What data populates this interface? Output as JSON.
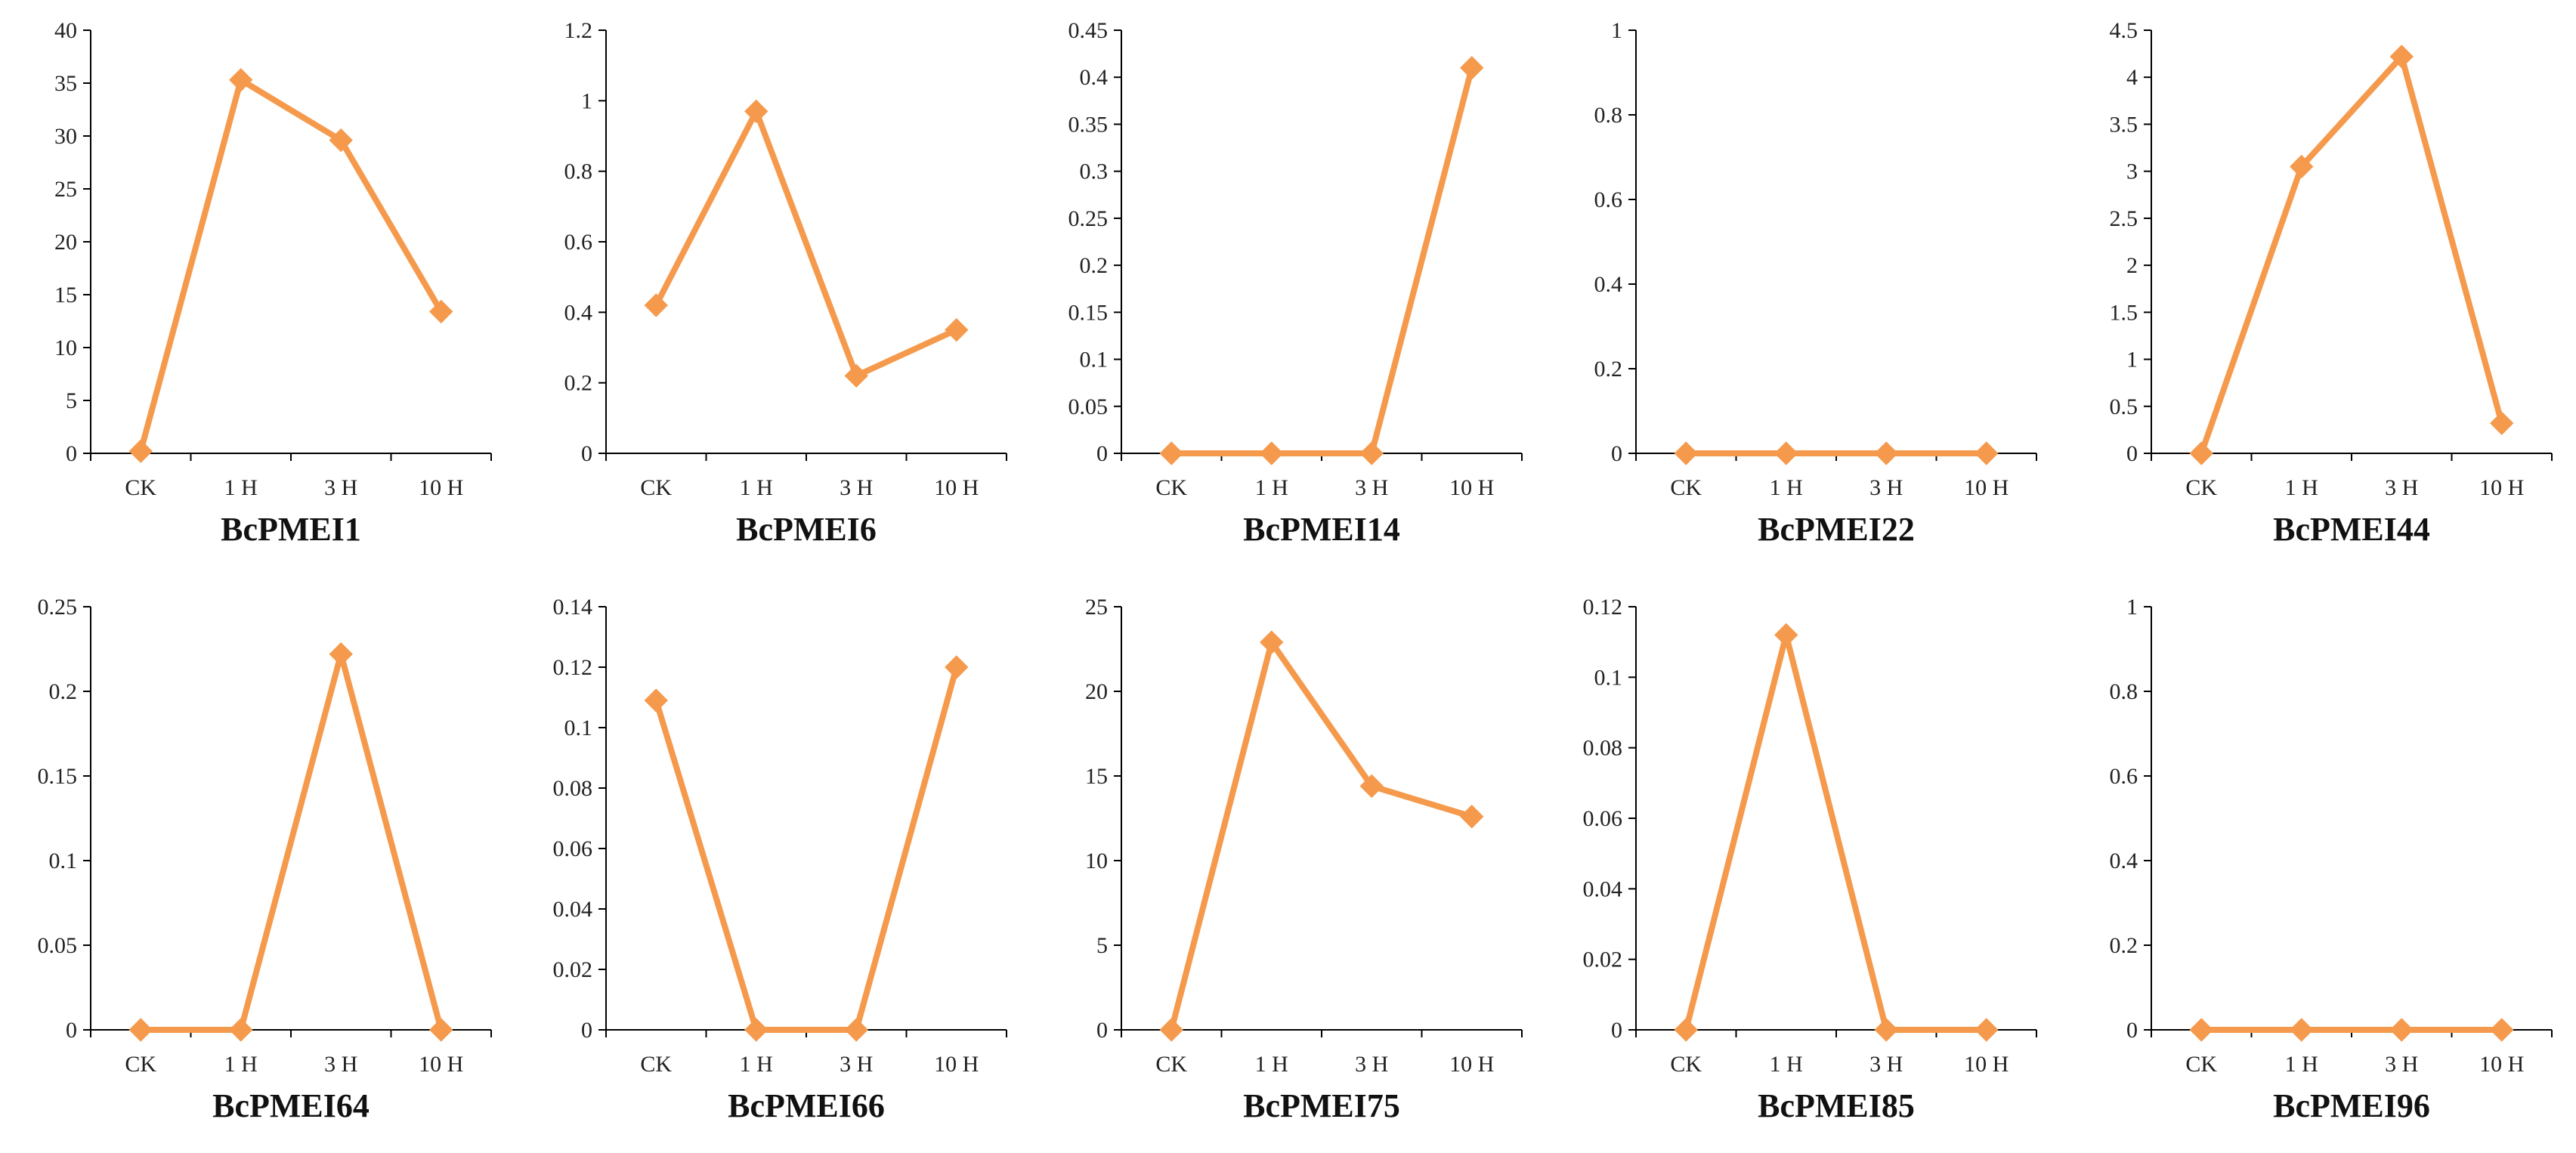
{
  "series_color": "#F59A4D",
  "axis_color": "#000000",
  "chart_data": [
    {
      "type": "line",
      "title": "BcPMEI1",
      "categories": [
        "CK",
        "1 H",
        "3 H",
        "10 H"
      ],
      "values": [
        0.2,
        35.3,
        29.6,
        13.4
      ],
      "ylim": [
        0,
        40
      ],
      "ytick_labels": [
        "0",
        "5",
        "10",
        "15",
        "20",
        "25",
        "30",
        "35",
        "40"
      ],
      "grid": false,
      "legend": "none"
    },
    {
      "type": "line",
      "title": "BcPMEI6",
      "categories": [
        "CK",
        "1 H",
        "3 H",
        "10 H"
      ],
      "values": [
        0.42,
        0.97,
        0.22,
        0.35
      ],
      "ylim": [
        0,
        1.2
      ],
      "ytick_labels": [
        "0",
        "0.2",
        "0.4",
        "0.6",
        "0.8",
        "1",
        "1.2"
      ],
      "grid": false,
      "legend": "none"
    },
    {
      "type": "line",
      "title": "BcPMEI14",
      "categories": [
        "CK",
        "1 H",
        "3 H",
        "10 H"
      ],
      "values": [
        0,
        0,
        0,
        0.41
      ],
      "ylim": [
        0,
        0.45
      ],
      "ytick_labels": [
        "0",
        "0.05",
        "0.1",
        "0.15",
        "0.2",
        "0.25",
        "0.3",
        "0.35",
        "0.4",
        "0.45"
      ],
      "grid": false,
      "legend": "none"
    },
    {
      "type": "line",
      "title": "BcPMEI22",
      "categories": [
        "CK",
        "1 H",
        "3 H",
        "10 H"
      ],
      "values": [
        0,
        0,
        0,
        0
      ],
      "ylim": [
        0,
        1
      ],
      "ytick_labels": [
        "0",
        "0.2",
        "0.4",
        "0.6",
        "0.8",
        "1"
      ],
      "grid": false,
      "legend": "none"
    },
    {
      "type": "line",
      "title": "BcPMEI44",
      "categories": [
        "CK",
        "1 H",
        "3 H",
        "10 H"
      ],
      "values": [
        0,
        3.05,
        4.22,
        0.32
      ],
      "ylim": [
        0,
        4.5
      ],
      "ytick_labels": [
        "0",
        "0.5",
        "1",
        "1.5",
        "2",
        "2.5",
        "3",
        "3.5",
        "4",
        "4.5"
      ],
      "grid": false,
      "legend": "none"
    },
    {
      "type": "line",
      "title": "BcPMEI64",
      "categories": [
        "CK",
        "1 H",
        "3 H",
        "10 H"
      ],
      "values": [
        0,
        0,
        0.222,
        0
      ],
      "ylim": [
        0,
        0.25
      ],
      "ytick_labels": [
        "0",
        "0.05",
        "0.1",
        "0.15",
        "0.2",
        "0.25"
      ],
      "grid": false,
      "legend": "none"
    },
    {
      "type": "line",
      "title": "BcPMEI66",
      "categories": [
        "CK",
        "1 H",
        "3 H",
        "10 H"
      ],
      "values": [
        0.109,
        0,
        0,
        0.12
      ],
      "ylim": [
        0,
        0.14
      ],
      "ytick_labels": [
        "0",
        "0.02",
        "0.04",
        "0.06",
        "0.08",
        "0.1",
        "0.12",
        "0.14"
      ],
      "grid": false,
      "legend": "none"
    },
    {
      "type": "line",
      "title": "BcPMEI75",
      "categories": [
        "CK",
        "1 H",
        "3 H",
        "10 H"
      ],
      "values": [
        0,
        22.9,
        14.4,
        12.6
      ],
      "ylim": [
        0,
        25
      ],
      "ytick_labels": [
        "0",
        "5",
        "10",
        "15",
        "20",
        "25"
      ],
      "grid": false,
      "legend": "none"
    },
    {
      "type": "line",
      "title": "BcPMEI85",
      "categories": [
        "CK",
        "1 H",
        "3 H",
        "10 H"
      ],
      "values": [
        0,
        0.112,
        0,
        0
      ],
      "ylim": [
        0,
        0.12
      ],
      "ytick_labels": [
        "0",
        "0.02",
        "0.04",
        "0.06",
        "0.08",
        "0.1",
        "0.12"
      ],
      "grid": false,
      "legend": "none"
    },
    {
      "type": "line",
      "title": "BcPMEI96",
      "categories": [
        "CK",
        "1 H",
        "3 H",
        "10 H"
      ],
      "values": [
        0,
        0,
        0,
        0
      ],
      "ylim": [
        0,
        1
      ],
      "ytick_labels": [
        "0",
        "0.2",
        "0.4",
        "0.6",
        "0.8",
        "1"
      ],
      "grid": false,
      "legend": "none"
    }
  ]
}
